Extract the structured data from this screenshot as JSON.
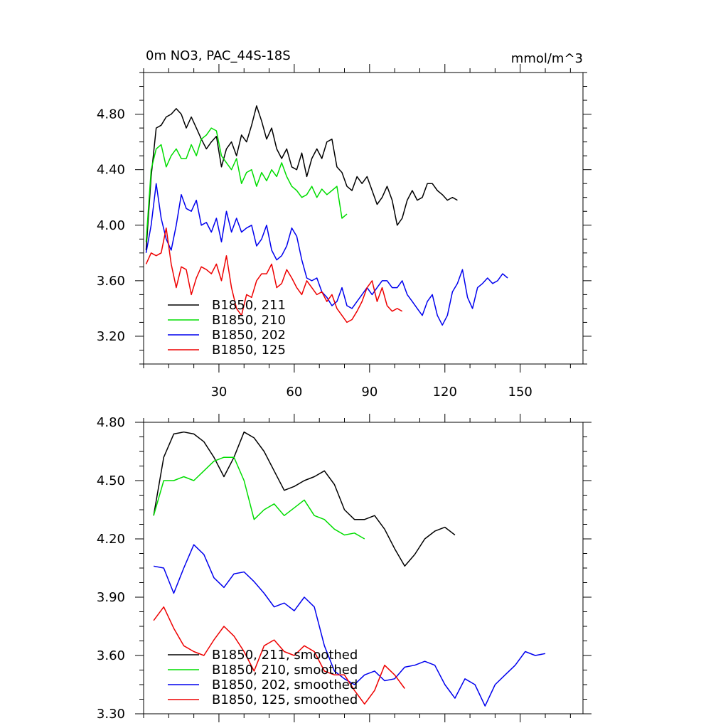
{
  "chart_data": [
    {
      "type": "line",
      "title": "0m NO3, PAC_44S-18S",
      "units": "mmol/m^3",
      "xlim": [
        0,
        175
      ],
      "ylim": [
        3.0,
        5.1
      ],
      "xticks": [
        30,
        60,
        90,
        120,
        150
      ],
      "xtick_labels": [
        "30",
        "60",
        "90",
        "120",
        "150"
      ],
      "yticks": [
        3.2,
        3.6,
        4.0,
        4.4,
        4.8
      ],
      "ytick_labels": [
        "3.20",
        "3.60",
        "4.00",
        "4.40",
        "4.80"
      ],
      "legend_position": "bottom-left",
      "series": [
        {
          "name": "B1850, 211",
          "color": "#000000",
          "x_start": 1,
          "step": 2,
          "values": [
            3.82,
            4.35,
            4.7,
            4.72,
            4.78,
            4.8,
            4.84,
            4.8,
            4.7,
            4.78,
            4.7,
            4.62,
            4.55,
            4.6,
            4.64,
            4.42,
            4.55,
            4.6,
            4.5,
            4.65,
            4.6,
            4.72,
            4.86,
            4.75,
            4.62,
            4.7,
            4.55,
            4.48,
            4.55,
            4.42,
            4.4,
            4.52,
            4.35,
            4.48,
            4.55,
            4.48,
            4.6,
            4.62,
            4.42,
            4.38,
            4.28,
            4.25,
            4.35,
            4.3,
            4.35,
            4.25,
            4.15,
            4.2,
            4.28,
            4.18,
            4.0,
            4.05,
            4.18,
            4.25,
            4.18,
            4.2,
            4.3,
            4.3,
            4.25,
            4.22,
            4.18,
            4.2,
            4.18
          ]
        },
        {
          "name": "B1850, 210",
          "color": "#00dd00",
          "x_start": 1,
          "step": 2,
          "values": [
            3.88,
            4.4,
            4.55,
            4.58,
            4.42,
            4.5,
            4.55,
            4.48,
            4.48,
            4.58,
            4.5,
            4.62,
            4.65,
            4.7,
            4.68,
            4.5,
            4.45,
            4.4,
            4.48,
            4.3,
            4.38,
            4.4,
            4.28,
            4.38,
            4.32,
            4.4,
            4.35,
            4.45,
            4.35,
            4.28,
            4.25,
            4.2,
            4.22,
            4.28,
            4.2,
            4.26,
            4.22,
            4.25,
            4.28,
            4.05,
            4.08
          ]
        },
        {
          "name": "B1850, 202",
          "color": "#0000ee",
          "x_start": 1,
          "step": 2,
          "values": [
            3.8,
            4.0,
            4.3,
            4.05,
            3.9,
            3.82,
            4.0,
            4.22,
            4.12,
            4.1,
            4.18,
            4.0,
            4.02,
            3.95,
            4.05,
            3.88,
            4.1,
            3.95,
            4.05,
            3.95,
            3.98,
            4.0,
            3.85,
            3.9,
            4.0,
            3.82,
            3.75,
            3.78,
            3.85,
            3.98,
            3.92,
            3.75,
            3.62,
            3.6,
            3.62,
            3.52,
            3.48,
            3.42,
            3.45,
            3.55,
            3.42,
            3.4,
            3.45,
            3.5,
            3.55,
            3.5,
            3.55,
            3.6,
            3.6,
            3.55,
            3.55,
            3.6,
            3.5,
            3.45,
            3.4,
            3.35,
            3.45,
            3.5,
            3.35,
            3.28,
            3.35,
            3.52,
            3.58,
            3.68,
            3.48,
            3.4,
            3.55,
            3.58,
            3.62,
            3.58,
            3.6,
            3.65,
            3.62
          ]
        },
        {
          "name": "B1850, 125",
          "color": "#ee0000",
          "x_start": 1,
          "step": 2,
          "values": [
            3.72,
            3.8,
            3.78,
            3.8,
            3.98,
            3.72,
            3.55,
            3.7,
            3.68,
            3.5,
            3.62,
            3.7,
            3.68,
            3.65,
            3.72,
            3.6,
            3.78,
            3.55,
            3.4,
            3.35,
            3.5,
            3.48,
            3.6,
            3.65,
            3.65,
            3.72,
            3.55,
            3.58,
            3.68,
            3.62,
            3.55,
            3.5,
            3.6,
            3.55,
            3.5,
            3.52,
            3.45,
            3.5,
            3.4,
            3.35,
            3.3,
            3.32,
            3.38,
            3.45,
            3.55,
            3.6,
            3.45,
            3.55,
            3.42,
            3.38,
            3.4,
            3.38
          ]
        }
      ]
    },
    {
      "type": "line",
      "xlim": [
        0,
        175
      ],
      "ylim": [
        3.3,
        4.8
      ],
      "xticks": [
        30,
        60,
        90,
        120,
        150
      ],
      "yticks": [
        3.3,
        3.6,
        3.9,
        4.2,
        4.5,
        4.8
      ],
      "ytick_labels": [
        "3.30",
        "3.60",
        "3.90",
        "4.20",
        "4.50",
        "4.80"
      ],
      "legend_position": "bottom-left",
      "series": [
        {
          "name": "B1850, 211, smoothed",
          "color": "#000000",
          "x_start": 4,
          "step": 4,
          "values": [
            4.32,
            4.62,
            4.74,
            4.75,
            4.74,
            4.7,
            4.62,
            4.52,
            4.62,
            4.75,
            4.72,
            4.65,
            4.55,
            4.45,
            4.47,
            4.5,
            4.52,
            4.55,
            4.48,
            4.35,
            4.3,
            4.3,
            4.32,
            4.25,
            4.15,
            4.06,
            4.12,
            4.2,
            4.24,
            4.26,
            4.22
          ]
        },
        {
          "name": "B1850, 210, smoothed",
          "color": "#00dd00",
          "x_start": 4,
          "step": 4,
          "values": [
            4.32,
            4.5,
            4.5,
            4.52,
            4.5,
            4.55,
            4.6,
            4.62,
            4.62,
            4.5,
            4.3,
            4.35,
            4.38,
            4.32,
            4.36,
            4.4,
            4.32,
            4.3,
            4.25,
            4.22,
            4.23,
            4.2
          ]
        },
        {
          "name": "B1850, 202, smoothed",
          "color": "#0000ee",
          "x_start": 4,
          "step": 4,
          "values": [
            4.06,
            4.05,
            3.92,
            4.05,
            4.17,
            4.12,
            4.0,
            3.95,
            4.02,
            4.03,
            3.98,
            3.92,
            3.85,
            3.87,
            3.83,
            3.9,
            3.85,
            3.65,
            3.52,
            3.48,
            3.45,
            3.5,
            3.52,
            3.47,
            3.48,
            3.54,
            3.55,
            3.57,
            3.55,
            3.45,
            3.38,
            3.48,
            3.45,
            3.34,
            3.45,
            3.5,
            3.55,
            3.62,
            3.6,
            3.61
          ]
        },
        {
          "name": "B1850, 125, smoothed",
          "color": "#ee0000",
          "x_start": 4,
          "step": 4,
          "values": [
            3.78,
            3.85,
            3.74,
            3.65,
            3.62,
            3.6,
            3.68,
            3.75,
            3.7,
            3.62,
            3.52,
            3.65,
            3.68,
            3.62,
            3.6,
            3.65,
            3.62,
            3.52,
            3.5,
            3.5,
            3.42,
            3.35,
            3.42,
            3.55,
            3.5,
            3.43
          ]
        }
      ]
    }
  ]
}
